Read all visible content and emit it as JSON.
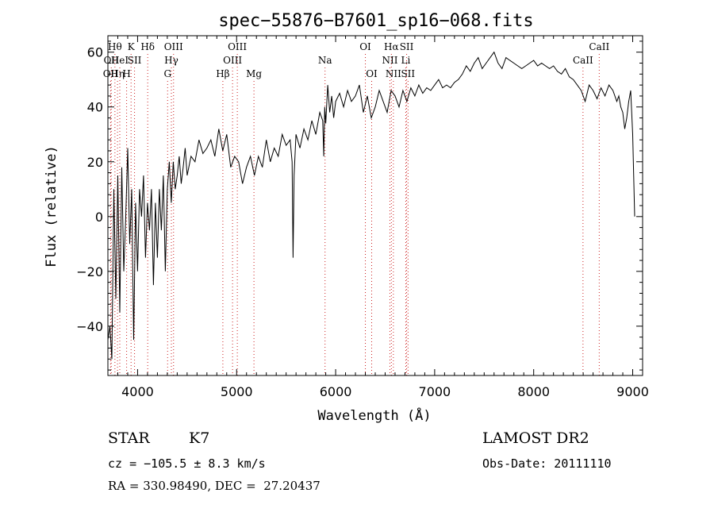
{
  "chart_data": {
    "type": "line",
    "title": "spec−55876−B7601_sp16−068.fits",
    "xlabel": "Wavelength (Å)",
    "ylabel": "Flux (relative)",
    "xlim": [
      3700,
      9100
    ],
    "ylim": [
      -58,
      66
    ],
    "x_ticks": [
      4000,
      5000,
      6000,
      7000,
      8000,
      9000
    ],
    "y_ticks": [
      -40,
      -20,
      0,
      20,
      40,
      60
    ],
    "x_tick_labels": [
      "4000",
      "5000",
      "6000",
      "7000",
      "8000",
      "9000"
    ],
    "y_tick_labels": [
      "−40",
      "−20",
      "0",
      "20",
      "40",
      "60"
    ],
    "line_color": "#000000",
    "marker_color": "#cc2222",
    "series": [
      {
        "x": [
          3700,
          3720,
          3740,
          3760,
          3780,
          3800,
          3820,
          3840,
          3860,
          3880,
          3900,
          3920,
          3940,
          3960,
          3980,
          4000,
          4020,
          4040,
          4060,
          4080,
          4100,
          4120,
          4140,
          4160,
          4180,
          4200,
          4220,
          4240,
          4260,
          4280,
          4300,
          4320,
          4340,
          4360,
          4380,
          4400,
          4420,
          4440,
          4460,
          4480,
          4500,
          4540,
          4580,
          4620,
          4660,
          4700,
          4740,
          4780,
          4820,
          4860,
          4900,
          4940,
          4980,
          5020,
          5060,
          5100,
          5140,
          5180,
          5220,
          5260,
          5300,
          5340,
          5380,
          5420,
          5460,
          5500,
          5540,
          5560,
          5570,
          5580,
          5600,
          5640,
          5680,
          5720,
          5760,
          5800,
          5840,
          5870,
          5880,
          5890,
          5900,
          5920,
          5940,
          5960,
          5980,
          6000,
          6040,
          6080,
          6120,
          6160,
          6200,
          6240,
          6280,
          6320,
          6360,
          6400,
          6440,
          6480,
          6520,
          6560,
          6600,
          6640,
          6680,
          6720,
          6760,
          6800,
          6840,
          6880,
          6920,
          6960,
          7000,
          7040,
          7080,
          7120,
          7160,
          7200,
          7240,
          7280,
          7320,
          7360,
          7400,
          7440,
          7480,
          7520,
          7560,
          7600,
          7640,
          7680,
          7720,
          7760,
          7800,
          7840,
          7880,
          7920,
          7960,
          8000,
          8040,
          8080,
          8120,
          8160,
          8200,
          8240,
          8280,
          8320,
          8360,
          8400,
          8440,
          8480,
          8520,
          8560,
          8600,
          8640,
          8680,
          8720,
          8760,
          8800,
          8840,
          8860,
          8880,
          8900,
          8920,
          8940,
          8960,
          8980,
          9000,
          9020
        ],
        "y": [
          -45,
          -40,
          -52,
          10,
          -30,
          15,
          -35,
          18,
          -20,
          0,
          25,
          -10,
          10,
          -45,
          5,
          -20,
          10,
          0,
          15,
          -15,
          5,
          -5,
          10,
          -25,
          5,
          -15,
          10,
          -5,
          15,
          -20,
          10,
          20,
          5,
          20,
          10,
          15,
          22,
          12,
          18,
          25,
          15,
          22,
          20,
          28,
          23,
          25,
          28,
          22,
          32,
          24,
          30,
          18,
          22,
          20,
          12,
          18,
          22,
          15,
          22,
          18,
          28,
          20,
          25,
          22,
          30,
          26,
          28,
          20,
          -15,
          15,
          30,
          25,
          32,
          28,
          35,
          30,
          38,
          35,
          22,
          40,
          34,
          48,
          38,
          44,
          36,
          42,
          45,
          40,
          46,
          42,
          44,
          48,
          38,
          44,
          36,
          40,
          46,
          42,
          38,
          46,
          44,
          40,
          46,
          42,
          47,
          44,
          48,
          45,
          47,
          46,
          48,
          50,
          47,
          48,
          47,
          49,
          50,
          52,
          55,
          53,
          56,
          58,
          54,
          56,
          58,
          60,
          56,
          54,
          58,
          57,
          56,
          55,
          54,
          55,
          56,
          57,
          55,
          56,
          55,
          54,
          55,
          53,
          52,
          54,
          51,
          50,
          48,
          46,
          42,
          48,
          46,
          43,
          47,
          44,
          48,
          46,
          42,
          44,
          40,
          38,
          32,
          36,
          42,
          46,
          30,
          0
        ]
      }
    ],
    "emission_lines": [
      {
        "x": 3727,
        "label": "OII",
        "row": 2
      },
      {
        "x": 3734,
        "label": "OII",
        "row": 1
      },
      {
        "x": 3771,
        "label": "Hθ",
        "row": 0
      },
      {
        "x": 3797,
        "label": "Hη",
        "row": 2
      },
      {
        "x": 3820,
        "label": "HeI",
        "row": 1
      },
      {
        "x": 3889,
        "label": "H",
        "row": 2
      },
      {
        "x": 3934,
        "label": "K",
        "row": 0
      },
      {
        "x": 3969,
        "label": "SII",
        "row": 1
      },
      {
        "x": 4102,
        "label": "Hδ",
        "row": 0
      },
      {
        "x": 4303,
        "label": "G",
        "row": 2
      },
      {
        "x": 4341,
        "label": "Hγ",
        "row": 1
      },
      {
        "x": 4363,
        "label": "OIII",
        "row": 0
      },
      {
        "x": 4861,
        "label": "Hβ",
        "row": 2
      },
      {
        "x": 4959,
        "label": "OIII",
        "row": 1
      },
      {
        "x": 5007,
        "label": "OIII",
        "row": 0
      },
      {
        "x": 5175,
        "label": "Mg",
        "row": 2
      },
      {
        "x": 5893,
        "label": "Na",
        "row": 1
      },
      {
        "x": 6300,
        "label": "OI",
        "row": 0
      },
      {
        "x": 6364,
        "label": "OI",
        "row": 2
      },
      {
        "x": 6548,
        "label": "NII",
        "row": 1
      },
      {
        "x": 6563,
        "label": "Hα",
        "row": 0
      },
      {
        "x": 6583,
        "label": "NII",
        "row": 2
      },
      {
        "x": 6708,
        "label": "Li",
        "row": 1
      },
      {
        "x": 6717,
        "label": "SII",
        "row": 0
      },
      {
        "x": 6731,
        "label": "SII",
        "row": 2
      },
      {
        "x": 8498,
        "label": "CaII",
        "row": 1
      },
      {
        "x": 8662,
        "label": "CaII",
        "row": 0
      }
    ]
  },
  "info": {
    "object_class": "STAR",
    "subclass": "K7",
    "cz": "cz = −105.5 ± 8.3 km/s",
    "coords": "RA = 330.98490, DEC =  27.20437",
    "survey": "LAMOST DR2",
    "obs_date": "Obs-Date: 20111110"
  }
}
